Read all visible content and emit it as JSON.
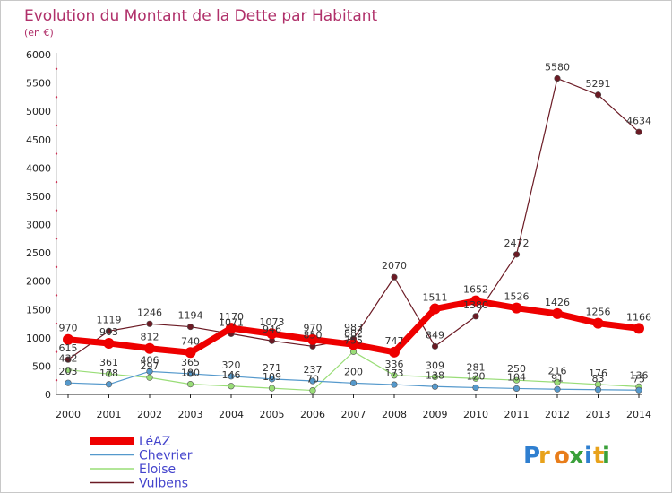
{
  "chart_data": {
    "type": "line",
    "title": "Evolution du Montant de la Dette par Habitant",
    "subtitle": "(en €)",
    "xlabel": "",
    "ylabel": "",
    "categories": [
      "2000",
      "2001",
      "2002",
      "2003",
      "2004",
      "2005",
      "2006",
      "2007",
      "2008",
      "2009",
      "2010",
      "2011",
      "2012",
      "2013",
      "2014"
    ],
    "ylim": [
      0,
      6000
    ],
    "yticks": [
      0,
      500,
      1000,
      1500,
      2000,
      2500,
      3000,
      3500,
      4000,
      4500,
      5000,
      5500,
      6000
    ],
    "grid": false,
    "legend_position": "bottom-left",
    "series": [
      {
        "name": "Vulbens",
        "color": "#6b1a24",
        "values": [
          615,
          1119,
          1246,
          1194,
          1071,
          946,
          850,
          983,
          2070,
          849,
          1380,
          2472,
          5580,
          5291,
          4634
        ]
      },
      {
        "name": "Eloise",
        "color": "#99dd77",
        "values": [
          432,
          361,
          297,
          180,
          146,
          109,
          70,
          755,
          336,
          309,
          281,
          250,
          216,
          176,
          136
        ]
      },
      {
        "name": "Chevrier",
        "color": "#5599cc",
        "values": [
          203,
          178,
          406,
          365,
          320,
          271,
          237,
          200,
          173,
          138,
          120,
          104,
          91,
          83,
          75
        ]
      },
      {
        "name": "LéAZ",
        "color": "#ee0000",
        "values": [
          970,
          903,
          812,
          740,
          1170,
          1073,
          970,
          882,
          747,
          1511,
          1652,
          1526,
          1426,
          1256,
          1166
        ]
      }
    ],
    "legend_order": [
      "LéAZ",
      "Chevrier",
      "Eloise",
      "Vulbens"
    ]
  },
  "logo": {
    "text": "Proxiti",
    "letters": [
      "P",
      "r",
      "o",
      "x",
      "i",
      "t",
      "i"
    ]
  }
}
